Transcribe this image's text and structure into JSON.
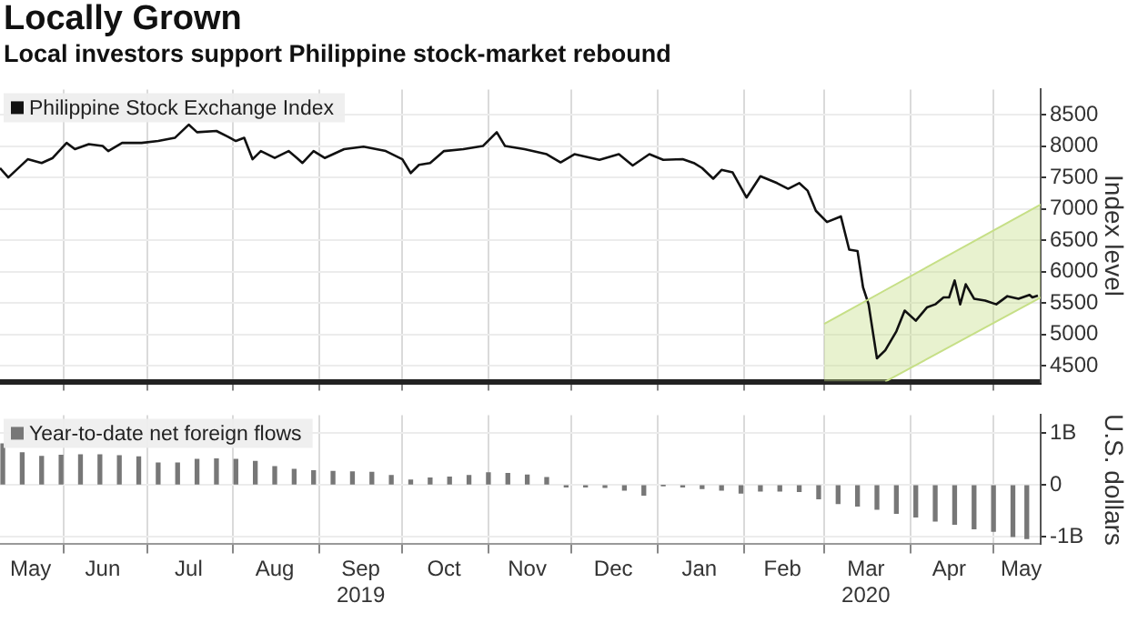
{
  "chart_data": [
    {
      "type": "line",
      "title": "Locally Grown",
      "subtitle": "Local investors support Philippine stock-market rebound",
      "ylabel": "Index level",
      "legend": "top left",
      "grid": true,
      "tick_labels": "y",
      "xlim": [
        "2019-05-09",
        "2020-05-18"
      ],
      "xticks": [
        {
          "value": "2019-06-01",
          "label": null
        },
        {
          "value": "2019-07-01",
          "label": null
        },
        {
          "value": "2019-08-01",
          "label": null
        },
        {
          "value": "2019-09-01",
          "label": null
        },
        {
          "value": "2019-10-01",
          "label": null
        },
        {
          "value": "2019-11-01",
          "label": null
        },
        {
          "value": "2019-12-01",
          "label": null
        },
        {
          "value": "2020-01-01",
          "label": null
        },
        {
          "value": "2020-02-01",
          "label": null
        },
        {
          "value": "2020-03-01",
          "label": null
        },
        {
          "value": "2020-04-01",
          "label": null
        },
        {
          "value": "2020-05-01",
          "label": null
        }
      ],
      "ylim": [
        4250,
        8900
      ],
      "yticks": [
        4500,
        5000,
        5500,
        6000,
        6500,
        7000,
        7500,
        8000,
        8500
      ],
      "series": [
        {
          "type": "line",
          "color": "#c6df86",
          "x": [
            "2020-03-01",
            "2020-03-23",
            "2020-05-18"
          ],
          "values": [
            null,
            null,
            null
          ],
          "lower": [
            4250,
            4250,
            5590
          ],
          "upper": [
            5170,
            5690,
            7070
          ]
        },
        {
          "type": "line",
          "color": "#c6df86",
          "x": [
            "2020-03-01",
            "2020-05-18"
          ],
          "values": [
            5170,
            7070
          ]
        },
        {
          "type": "line",
          "color": "#c6df86",
          "x": [
            "2020-03-23",
            "2020-05-18"
          ],
          "values": [
            4250,
            5590
          ]
        },
        {
          "name": "Philippine Stock Exchange Index",
          "color": "#111111",
          "x": [
            "2019-05-09",
            "2019-05-12",
            "2019-05-19",
            "2019-05-24",
            "2019-05-28",
            "2019-06-02",
            "2019-06-05",
            "2019-06-10",
            "2019-06-15",
            "2019-06-17",
            "2019-06-22",
            "2019-06-29",
            "2019-07-05",
            "2019-07-11",
            "2019-07-16",
            "2019-07-19",
            "2019-07-26",
            "2019-07-30",
            "2019-08-02",
            "2019-08-05",
            "2019-08-08",
            "2019-08-11",
            "2019-08-16",
            "2019-08-21",
            "2019-08-24",
            "2019-08-26",
            "2019-08-30",
            "2019-09-03",
            "2019-09-10",
            "2019-09-17",
            "2019-09-25",
            "2019-10-01",
            "2019-10-04",
            "2019-10-07",
            "2019-10-11",
            "2019-10-16",
            "2019-10-23",
            "2019-10-30",
            "2019-11-04",
            "2019-11-07",
            "2019-11-14",
            "2019-11-22",
            "2019-11-27",
            "2019-12-02",
            "2019-12-11",
            "2019-12-18",
            "2019-12-23",
            "2019-12-29",
            "2020-01-03",
            "2020-01-10",
            "2020-01-14",
            "2020-01-17",
            "2020-01-21",
            "2020-01-24",
            "2020-01-28",
            "2020-02-02",
            "2020-02-07",
            "2020-02-13",
            "2020-02-17",
            "2020-02-21",
            "2020-02-24",
            "2020-02-27",
            "2020-03-02",
            "2020-03-07",
            "2020-03-10",
            "2020-03-13",
            "2020-03-15",
            "2020-03-17",
            "2020-03-20",
            "2020-03-23",
            "2020-03-27",
            "2020-03-30",
            "2020-04-03",
            "2020-04-07",
            "2020-04-10",
            "2020-04-13",
            "2020-04-15",
            "2020-04-17",
            "2020-04-19",
            "2020-04-21",
            "2020-04-24",
            "2020-04-28",
            "2020-05-02",
            "2020-05-06",
            "2020-05-10",
            "2020-05-14",
            "2020-05-15",
            "2020-05-17"
          ],
          "values": [
            7650,
            7500,
            7790,
            7730,
            7810,
            8050,
            7950,
            8030,
            8000,
            7920,
            8050,
            8050,
            8080,
            8130,
            8340,
            8220,
            8240,
            8150,
            8080,
            8130,
            7790,
            7920,
            7810,
            7920,
            7810,
            7730,
            7920,
            7810,
            7950,
            7990,
            7920,
            7790,
            7570,
            7700,
            7730,
            7920,
            7950,
            8000,
            8220,
            8000,
            7950,
            7870,
            7740,
            7870,
            7780,
            7870,
            7690,
            7870,
            7780,
            7790,
            7730,
            7650,
            7480,
            7620,
            7580,
            7180,
            7520,
            7410,
            7320,
            7410,
            7290,
            6970,
            6790,
            6880,
            6350,
            6330,
            5750,
            5480,
            4620,
            4750,
            5050,
            5380,
            5220,
            5430,
            5480,
            5590,
            5590,
            5860,
            5480,
            5800,
            5570,
            5540,
            5480,
            5610,
            5570,
            5630,
            5590,
            5620
          ]
        }
      ]
    },
    {
      "type": "bar",
      "ylabel": "U.S. dollars",
      "legend": "top left",
      "grid": true,
      "xlim": [
        "2019-05-09",
        "2020-05-18"
      ],
      "xticks": [
        {
          "value": "2019-05-20",
          "label": "May"
        },
        {
          "value": "2019-06-01",
          "label": null
        },
        {
          "value": "2019-06-15",
          "label": "Jun"
        },
        {
          "value": "2019-07-01",
          "label": null
        },
        {
          "value": "2019-07-16",
          "label": "Jul"
        },
        {
          "value": "2019-08-01",
          "label": null
        },
        {
          "value": "2019-08-16",
          "label": "Aug"
        },
        {
          "value": "2019-09-01",
          "label": null
        },
        {
          "value": "2019-09-16",
          "label": "Sep\n2019"
        },
        {
          "value": "2019-10-01",
          "label": null
        },
        {
          "value": "2019-10-16",
          "label": "Oct"
        },
        {
          "value": "2019-11-01",
          "label": null
        },
        {
          "value": "2019-11-15",
          "label": "Nov"
        },
        {
          "value": "2019-12-01",
          "label": null
        },
        {
          "value": "2019-12-16",
          "label": "Dec"
        },
        {
          "value": "2020-01-01",
          "label": null
        },
        {
          "value": "2020-01-16",
          "label": "Jan"
        },
        {
          "value": "2020-02-01",
          "label": null
        },
        {
          "value": "2020-02-15",
          "label": "Feb"
        },
        {
          "value": "2020-03-01",
          "label": null
        },
        {
          "value": "2020-03-16",
          "label": "Mar\n2020"
        },
        {
          "value": "2020-04-01",
          "label": null
        },
        {
          "value": "2020-04-15",
          "label": "Apr"
        },
        {
          "value": "2020-05-01",
          "label": null
        },
        {
          "value": "2020-05-11",
          "label": "May"
        }
      ],
      "ylim": [
        -1.15,
        1.35
      ],
      "yticks": [
        {
          "value": -1,
          "label": "-1B"
        },
        0,
        {
          "value": 1,
          "label": "1B"
        }
      ],
      "series": [
        {
          "name": "Year-to-date net foreign flows",
          "color": "#777777",
          "x": [
            "2019-05-10",
            "2019-05-17",
            "2019-05-24",
            "2019-05-31",
            "2019-06-07",
            "2019-06-14",
            "2019-06-21",
            "2019-06-28",
            "2019-07-05",
            "2019-07-12",
            "2019-07-19",
            "2019-07-26",
            "2019-08-02",
            "2019-08-09",
            "2019-08-16",
            "2019-08-23",
            "2019-08-30",
            "2019-09-06",
            "2019-09-13",
            "2019-09-20",
            "2019-09-27",
            "2019-10-04",
            "2019-10-11",
            "2019-10-18",
            "2019-10-25",
            "2019-11-01",
            "2019-11-08",
            "2019-11-15",
            "2019-11-22",
            "2019-11-29",
            "2019-12-06",
            "2019-12-13",
            "2019-12-20",
            "2019-12-27",
            "2020-01-03",
            "2020-01-10",
            "2020-01-17",
            "2020-01-24",
            "2020-01-31",
            "2020-02-07",
            "2020-02-14",
            "2020-02-21",
            "2020-02-28",
            "2020-03-06",
            "2020-03-13",
            "2020-03-20",
            "2020-03-27",
            "2020-04-03",
            "2020-04-10",
            "2020-04-17",
            "2020-04-24",
            "2020-05-01",
            "2020-05-08",
            "2020-05-13"
          ],
          "values": [
            0.79,
            0.62,
            0.55,
            0.57,
            0.58,
            0.58,
            0.56,
            0.54,
            0.42,
            0.42,
            0.49,
            0.5,
            0.49,
            0.45,
            0.35,
            0.3,
            0.27,
            0.26,
            0.25,
            0.24,
            0.18,
            0.09,
            0.13,
            0.15,
            0.18,
            0.23,
            0.22,
            0.19,
            0.14,
            -0.04,
            -0.04,
            -0.05,
            -0.1,
            -0.2,
            -0.01,
            -0.04,
            -0.07,
            -0.1,
            -0.16,
            -0.12,
            -0.12,
            -0.13,
            -0.27,
            -0.36,
            -0.41,
            -0.47,
            -0.55,
            -0.62,
            -0.7,
            -0.76,
            -0.85,
            -0.9,
            -1.0,
            -1.04
          ]
        }
      ]
    }
  ]
}
